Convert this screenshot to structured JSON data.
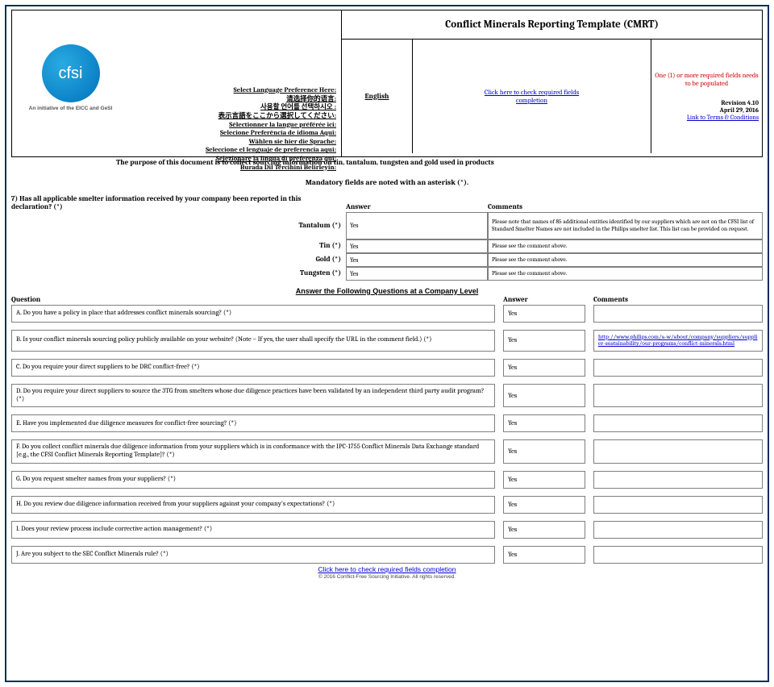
{
  "header": {
    "title": "Conflict Minerals Reporting Template (CMRT)",
    "logo_text": "cfsi",
    "logo_tagline": "An initiative of the EICC and GeSI",
    "lang_header": "Select Language Preference Here:",
    "lang_lines": [
      "请选择你的语言:",
      "사용할 언어를 선택하시오 :",
      "表示言語をここから選択してください:",
      "Sélectionner la langue préférée ici:",
      "Selecione Preferência de idioma Aqui:",
      "Wählen sie hier die Sprache:",
      "Seleccione el lenguaje de preferencia aqui:",
      "Selezionare la lingua di preferenza qui:",
      "Burada Dil Tercihini Belirleyin:"
    ],
    "language": "English",
    "check_link": "Click here to check required fields completion",
    "red_note": "One (1) or more required fields needs to be populated",
    "revision": "Revision 4.10",
    "date": "April 29, 2016",
    "terms_link": "Link to Terms & Conditions",
    "purpose": "The purpose of this document is to collect sourcing information on tin, tantalum, tungsten and gold used in products"
  },
  "mandatory_note": "Mandatory fields are noted with an asterisk (*).",
  "q7": {
    "text": "7) Has all applicable smelter information received by your company been reported in this declaration?  (*)",
    "answer_hdr": "Answer",
    "comments_hdr": "Comments",
    "rows": [
      {
        "metal": "Tantalum  (*)",
        "answer": "Yes",
        "comment": "Please note that names of 85 additional entities identified by our suppliers which are not on the CFSI list of Standard Smelter Names are not included in the Philips smelter list.  This list can be provided on request."
      },
      {
        "metal": "Tin  (*)",
        "answer": "Yes",
        "comment": "Please see the comment above."
      },
      {
        "metal": "Gold  (*)",
        "answer": "Yes",
        "comment": "Please see the comment above."
      },
      {
        "metal": "Tungsten  (*)",
        "answer": "Yes",
        "comment": "Please see the comment above."
      }
    ]
  },
  "company_section": {
    "title": "Answer the Following Questions at a Company Level",
    "q_hdr": "Question",
    "a_hdr": "Answer",
    "c_hdr": "Comments",
    "rows": [
      {
        "q": "A. Do you have a policy in place that addresses conflict minerals sourcing? (*)",
        "a": "Yes",
        "c": ""
      },
      {
        "q": "B. Is your conflict minerals sourcing policy publicly available on your website? (Note – If yes, the user shall specify the URL in the comment field.) (*)",
        "a": "Yes",
        "c": "http://www.philips.com/a-w/about/company/suppliers/supplier-sustainability/our-programs/conflict-minerals.html",
        "is_link": true
      },
      {
        "q": "C. Do you require your direct suppliers to be DRC conflict-free? (*)",
        "a": "Yes",
        "c": ""
      },
      {
        "q": "D. Do you require your direct suppliers to source the 3TG from smelters whose due diligence practices have been validated by an independent third party audit program? (*)",
        "a": "Yes",
        "c": ""
      },
      {
        "q": "E. Have you implemented due diligence measures for conflict-free sourcing? (*)",
        "a": "Yes",
        "c": ""
      },
      {
        "q": "F. Do you collect conflict minerals due diligence information from your suppliers which is in conformance with the IPC-1755 Conflict Minerals Data Exchange standard [e.g., the CFSI Conflict Minerals Reporting Template]? (*)",
        "a": "Yes",
        "c": ""
      },
      {
        "q": "G. Do you request smelter names from your suppliers? (*)",
        "a": "Yes",
        "c": ""
      },
      {
        "q": "H. Do you review due diligence information received from your suppliers against your company's expectations? (*)",
        "a": "Yes",
        "c": ""
      },
      {
        "q": "I. Does your review process include corrective action management? (*)",
        "a": "Yes",
        "c": ""
      },
      {
        "q": "J. Are you subject to the SEC Conflict Minerals rule? (*)",
        "a": "Yes",
        "c": ""
      }
    ]
  },
  "footer": {
    "check_link": "Click here to check required fields completion",
    "copyright": "© 2016 Conflict-Free Sourcing Initiative. All rights reserved."
  }
}
